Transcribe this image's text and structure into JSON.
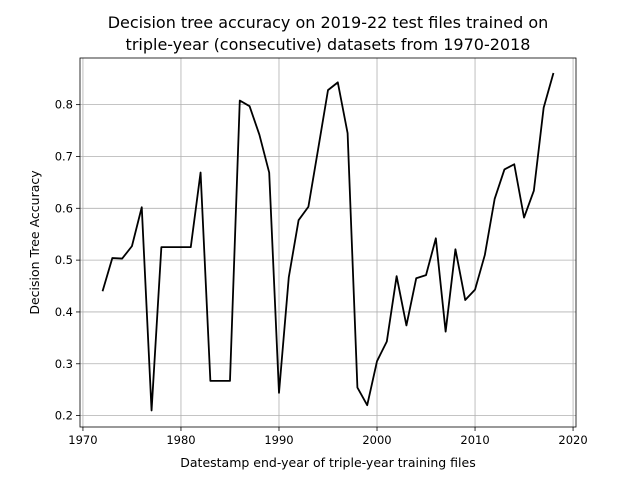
{
  "chart_data": {
    "type": "line",
    "title_lines": [
      "Decision tree accuracy on 2019-22 test files trained on",
      "triple-year (consecutive) datasets from 1970-2018"
    ],
    "xlabel": "Datestamp end-year of triple-year training files",
    "ylabel": "Decision Tree Accuracy",
    "xlim": [
      1969.7,
      2020.3
    ],
    "ylim": [
      0.178,
      0.89
    ],
    "grid": true,
    "x_ticks": [
      1970,
      1980,
      1990,
      2000,
      2010,
      2020
    ],
    "y_ticks": [
      0.2,
      0.3,
      0.4,
      0.5,
      0.6,
      0.7,
      0.8
    ],
    "y_tick_labels": [
      "0.2",
      "0.3",
      "0.4",
      "0.5",
      "0.6",
      "0.7",
      "0.8"
    ],
    "line_color": "#000000",
    "x": [
      1972,
      1973,
      1974,
      1975,
      1976,
      1977,
      1978,
      1979,
      1980,
      1981,
      1982,
      1983,
      1984,
      1985,
      1986,
      1987,
      1988,
      1989,
      1990,
      1991,
      1992,
      1993,
      1994,
      1995,
      1996,
      1997,
      1998,
      1999,
      2000,
      2001,
      2002,
      2003,
      2004,
      2005,
      2006,
      2007,
      2008,
      2009,
      2010,
      2011,
      2012,
      2013,
      2014,
      2015,
      2016,
      2017,
      2018
    ],
    "y": [
      0.44,
      0.504,
      0.503,
      0.527,
      0.602,
      0.21,
      0.525,
      0.525,
      0.525,
      0.525,
      0.669,
      0.267,
      0.267,
      0.267,
      0.808,
      0.797,
      0.742,
      0.669,
      0.244,
      0.467,
      0.577,
      0.603,
      0.715,
      0.828,
      0.843,
      0.745,
      0.254,
      0.22,
      0.305,
      0.343,
      0.469,
      0.374,
      0.465,
      0.471,
      0.542,
      0.362,
      0.521,
      0.423,
      0.443,
      0.51,
      0.618,
      0.675,
      0.685,
      0.582,
      0.634,
      0.794,
      0.861
    ]
  }
}
